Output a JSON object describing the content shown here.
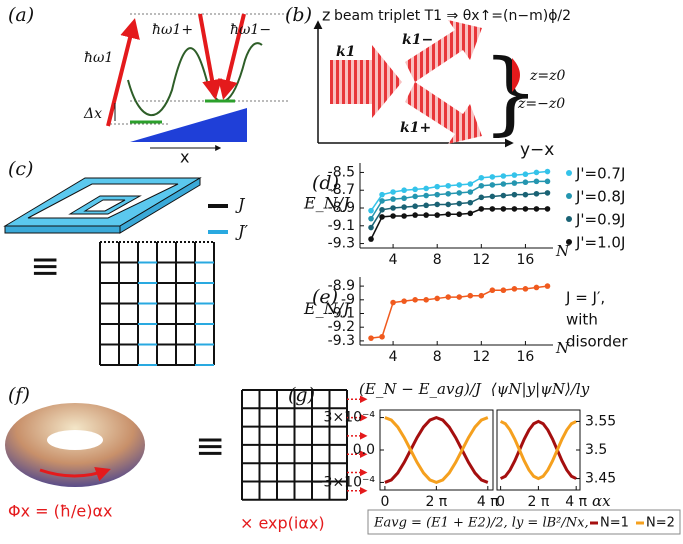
{
  "panels": {
    "a": {
      "label": "(a)",
      "omega1": "ħω1",
      "omega1p": "ħω1+",
      "omega1m": "ħω1−",
      "delta": "Δx",
      "x": "x"
    },
    "b": {
      "label": "(b)",
      "z": "z",
      "title": "beam triplet T1 ⇒ θx↑=(n−m)ϕ/2",
      "k1": "k1",
      "k1m": "k1−",
      "k1p": "k1+",
      "zp": "z=z0",
      "zm": "z=−z0",
      "yx": "y−x"
    },
    "c": {
      "label": "(c)",
      "J": "J",
      "Jp": "J′",
      "equiv": "≡"
    },
    "f": {
      "label": "(f)",
      "phi": "Φx = (ħ/e)αx",
      "exp": "× exp(iαx)",
      "equiv": "≡"
    },
    "g": {
      "caption": "Eavg = (E1 + E2)/2, ly = lB²/Nx,"
    }
  },
  "chart_data": [
    {
      "type": "line",
      "label": "(d)",
      "ylabel": "E_N/J",
      "xlabel": "N",
      "markers": true,
      "x": [
        2,
        3,
        4,
        5,
        6,
        7,
        8,
        9,
        10,
        11,
        12,
        13,
        14,
        15,
        16,
        17,
        18
      ],
      "xlim": [
        1,
        18.5
      ],
      "xticks": [
        4,
        8,
        12,
        16
      ],
      "ylim": [
        -9.35,
        -8.45
      ],
      "yticks": [
        -8.5,
        -8.7,
        -8.9,
        -9.1,
        -9.3
      ],
      "series": [
        {
          "name": "J'=0.7J",
          "color": "#34c3ea",
          "values": [
            -8.93,
            -8.75,
            -8.72,
            -8.7,
            -8.69,
            -8.68,
            -8.66,
            -8.65,
            -8.64,
            -8.63,
            -8.56,
            -8.55,
            -8.54,
            -8.53,
            -8.52,
            -8.5,
            -8.49
          ]
        },
        {
          "name": "J'=0.8J",
          "color": "#2496b0",
          "values": [
            -9.02,
            -8.82,
            -8.8,
            -8.79,
            -8.77,
            -8.76,
            -8.75,
            -8.74,
            -8.73,
            -8.72,
            -8.65,
            -8.64,
            -8.63,
            -8.62,
            -8.61,
            -8.6,
            -8.6
          ]
        },
        {
          "name": "J'=0.9J",
          "color": "#1a6274",
          "values": [
            -9.12,
            -8.92,
            -8.9,
            -8.89,
            -8.88,
            -8.87,
            -8.86,
            -8.86,
            -8.85,
            -8.84,
            -8.78,
            -8.77,
            -8.76,
            -8.75,
            -8.75,
            -8.74,
            -8.73
          ]
        },
        {
          "name": "J'=1.0J",
          "color": "#111111",
          "values": [
            -9.25,
            -9.0,
            -8.99,
            -8.99,
            -8.98,
            -8.98,
            -8.98,
            -8.97,
            -8.97,
            -8.96,
            -8.91,
            -8.91,
            -8.91,
            -8.91,
            -8.91,
            -8.91,
            -8.91
          ]
        }
      ]
    },
    {
      "type": "line",
      "label": "(e)",
      "ylabel": "E_N/J",
      "xlabel": "N",
      "markers": true,
      "annotation": [
        "J = J′,",
        "with",
        "disorder"
      ],
      "x": [
        2,
        3,
        4,
        5,
        6,
        7,
        8,
        9,
        10,
        11,
        12,
        13,
        14,
        15,
        16,
        17,
        18
      ],
      "xlim": [
        1,
        18.5
      ],
      "xticks": [
        4,
        8,
        12,
        16
      ],
      "ylim": [
        -9.33,
        -8.87
      ],
      "yticks": [
        -8.9,
        -9,
        -9.1,
        -9.2,
        -9.3
      ],
      "series": [
        {
          "color": "#f05a1e",
          "values": [
            -9.28,
            -9.27,
            -9.02,
            -9.01,
            -9.0,
            -9.0,
            -8.99,
            -8.98,
            -8.98,
            -8.97,
            -8.97,
            -8.93,
            -8.93,
            -8.92,
            -8.92,
            -8.91,
            -8.9
          ]
        }
      ]
    },
    {
      "type": "line",
      "label": "(g)",
      "title": "(E_N − E_avg)/J",
      "markers": false,
      "x": [
        0,
        0.785,
        1.571,
        2.356,
        3.142,
        3.927,
        4.712,
        5.498,
        6.283,
        7.069,
        7.854,
        8.639,
        9.425,
        10.21,
        10.996,
        11.781,
        12.566
      ],
      "xlim": [
        -0.6,
        13.2
      ],
      "xticks": [
        0,
        {
          "value": 6.283,
          "label": "2 π"
        },
        {
          "value": 12.566,
          "label": "4 π"
        }
      ],
      "ylim": [
        -0.00037,
        0.00037
      ],
      "yticks": [
        {
          "value": 0.0003,
          "label": "3×10⁻⁴"
        },
        {
          "value": 0,
          "label": "0.0"
        },
        {
          "value": -0.0003,
          "label": "−3×10⁻⁴"
        }
      ],
      "series": [
        {
          "name": "N=1",
          "color": "#a50f0f",
          "values": [
            -0.0003,
            -0.000277,
            -0.000212,
            -0.000115,
            0,
            0.000115,
            0.000212,
            0.000277,
            0.0003,
            0.000277,
            0.000212,
            0.000115,
            0,
            -0.000115,
            -0.000212,
            -0.000277,
            -0.0003
          ]
        },
        {
          "name": "N=2",
          "color": "#f5a01e",
          "values": [
            0.0003,
            0.000277,
            0.000212,
            0.000115,
            0,
            -0.000115,
            -0.000212,
            -0.000277,
            -0.0003,
            -0.000277,
            -0.000212,
            -0.000115,
            0,
            0.000115,
            0.000212,
            0.000277,
            0.0003
          ]
        }
      ]
    },
    {
      "type": "line",
      "title": "⟨ψN|y|ψN⟩/ly",
      "xlabel": "αx",
      "markers": false,
      "x": [
        0,
        0.785,
        1.571,
        2.356,
        3.142,
        3.927,
        4.712,
        5.498,
        6.283,
        7.069,
        7.854,
        8.639,
        9.425,
        10.21,
        10.996,
        11.781,
        12.566
      ],
      "xlim": [
        -0.6,
        13.2
      ],
      "xticks": [
        0,
        {
          "value": 6.283,
          "label": "2 π"
        },
        {
          "value": 12.566,
          "label": "4 π"
        }
      ],
      "ylim": [
        3.43,
        3.57
      ],
      "yticks": [
        3.55,
        3.5,
        3.45
      ],
      "series": [
        {
          "color": "#a50f0f",
          "values": [
            3.45,
            3.454,
            3.465,
            3.481,
            3.5,
            3.519,
            3.535,
            3.546,
            3.55,
            3.546,
            3.535,
            3.519,
            3.5,
            3.481,
            3.465,
            3.454,
            3.45
          ]
        },
        {
          "color": "#f5a01e",
          "values": [
            3.55,
            3.546,
            3.535,
            3.519,
            3.5,
            3.481,
            3.465,
            3.454,
            3.45,
            3.454,
            3.465,
            3.481,
            3.5,
            3.519,
            3.535,
            3.546,
            3.55
          ]
        }
      ]
    }
  ]
}
